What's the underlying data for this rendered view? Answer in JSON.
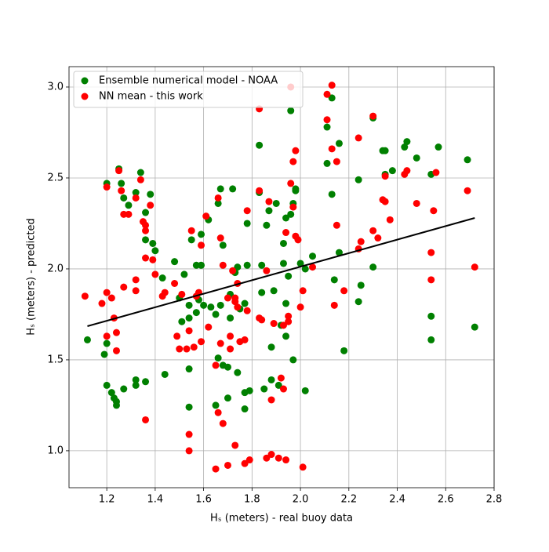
{
  "chart_data": {
    "type": "scatter",
    "xlabel": "Hₛ (meters) - real buoy data",
    "ylabel": "Hₛ (meters) - predicted",
    "xlim": [
      1.044,
      2.8
    ],
    "ylim": [
      0.797,
      3.112
    ],
    "xticks": [
      1.2,
      1.4,
      1.6,
      1.8,
      {
        "value": 2,
        "label": "2.0"
      },
      2.2,
      2.4,
      2.6,
      2.8
    ],
    "yticks": [
      {
        "value": 1,
        "label": "1.0"
      },
      1.5,
      {
        "value": 2,
        "label": "2.0"
      },
      2.5,
      {
        "value": 3,
        "label": "3.0"
      }
    ],
    "grid": true,
    "legend": "upper left",
    "series": [
      {
        "name": "Ensemble numerical model - NOAA",
        "color": "#008000",
        "x": [
          1.12,
          1.19,
          1.2,
          1.2,
          1.2,
          1.22,
          1.23,
          1.24,
          1.24,
          1.25,
          1.26,
          1.27,
          1.27,
          1.29,
          1.32,
          1.32,
          1.32,
          1.34,
          1.36,
          1.36,
          1.36,
          1.38,
          1.39,
          1.4,
          1.43,
          1.44,
          1.48,
          1.5,
          1.51,
          1.52,
          1.54,
          1.54,
          1.54,
          1.54,
          1.55,
          1.57,
          1.57,
          1.58,
          1.59,
          1.59,
          1.6,
          1.62,
          1.63,
          1.65,
          1.65,
          1.66,
          1.66,
          1.67,
          1.67,
          1.68,
          1.68,
          1.7,
          1.7,
          1.71,
          1.71,
          1.72,
          1.73,
          1.74,
          1.74,
          1.75,
          1.77,
          1.77,
          1.77,
          1.78,
          1.78,
          1.79,
          1.83,
          1.83,
          1.84,
          1.84,
          1.85,
          1.86,
          1.87,
          1.88,
          1.88,
          1.89,
          1.9,
          1.91,
          1.92,
          1.93,
          1.93,
          1.94,
          1.94,
          1.94,
          1.95,
          1.96,
          1.96,
          1.97,
          1.97,
          1.98,
          1.98,
          2.0,
          2.02,
          2.02,
          2.05,
          2.11,
          2.11,
          2.13,
          2.13,
          2.14,
          2.16,
          2.16,
          2.18,
          2.24,
          2.24,
          2.25,
          2.3,
          2.3,
          2.34,
          2.35,
          2.35,
          2.38,
          2.43,
          2.44,
          2.48,
          2.54,
          2.54,
          2.54,
          2.57,
          2.69,
          2.72
        ],
        "values": [
          1.61,
          1.53,
          2.47,
          1.59,
          1.36,
          1.32,
          1.29,
          1.27,
          1.25,
          2.55,
          2.47,
          2.39,
          1.34,
          2.35,
          2.42,
          1.39,
          1.36,
          2.53,
          2.31,
          2.16,
          1.38,
          2.41,
          2.14,
          2.1,
          1.95,
          1.42,
          2.04,
          1.84,
          1.71,
          1.97,
          1.8,
          1.73,
          1.45,
          1.24,
          2.16,
          2.02,
          1.76,
          1.83,
          2.19,
          2.02,
          1.8,
          2.27,
          1.79,
          1.75,
          1.25,
          2.36,
          1.51,
          2.44,
          1.8,
          1.47,
          2.13,
          1.46,
          1.29,
          1.86,
          1.73,
          2.44,
          1.98,
          2.01,
          1.43,
          1.78,
          1.81,
          1.32,
          1.23,
          2.25,
          2.02,
          1.33,
          2.68,
          2.42,
          1.87,
          2.02,
          1.34,
          2.24,
          2.32,
          1.57,
          1.39,
          1.88,
          2.36,
          1.36,
          1.69,
          2.14,
          2.03,
          2.28,
          1.81,
          1.63,
          1.96,
          2.87,
          2.3,
          2.36,
          1.5,
          2.44,
          2.43,
          2.03,
          2.0,
          1.33,
          2.07,
          2.78,
          2.58,
          2.94,
          2.41,
          1.94,
          2.69,
          2.09,
          1.55,
          2.49,
          1.82,
          1.91,
          2.83,
          2.01,
          2.65,
          2.65,
          2.52,
          2.54,
          2.67,
          2.7,
          2.61,
          2.52,
          1.74,
          1.61,
          2.67,
          2.6,
          1.68
        ]
      },
      {
        "name": "NN mean - this work",
        "color": "#ff0000",
        "x": [
          1.11,
          1.18,
          1.2,
          1.2,
          1.2,
          1.22,
          1.23,
          1.24,
          1.24,
          1.25,
          1.26,
          1.27,
          1.27,
          1.29,
          1.32,
          1.32,
          1.32,
          1.34,
          1.35,
          1.36,
          1.36,
          1.36,
          1.36,
          1.38,
          1.39,
          1.4,
          1.43,
          1.44,
          1.48,
          1.49,
          1.5,
          1.51,
          1.53,
          1.54,
          1.54,
          1.54,
          1.55,
          1.56,
          1.57,
          1.58,
          1.59,
          1.59,
          1.61,
          1.62,
          1.65,
          1.65,
          1.66,
          1.66,
          1.67,
          1.67,
          1.68,
          1.68,
          1.7,
          1.7,
          1.71,
          1.71,
          1.72,
          1.73,
          1.73,
          1.73,
          1.74,
          1.74,
          1.75,
          1.77,
          1.77,
          1.78,
          1.78,
          1.79,
          1.83,
          1.83,
          1.83,
          1.84,
          1.86,
          1.86,
          1.87,
          1.88,
          1.88,
          1.89,
          1.91,
          1.92,
          1.93,
          1.93,
          1.94,
          1.94,
          1.95,
          1.95,
          1.96,
          1.96,
          1.97,
          1.97,
          1.98,
          1.98,
          1.99,
          2.0,
          2.01,
          2.01,
          2.05,
          2.11,
          2.11,
          2.13,
          2.13,
          2.14,
          2.15,
          2.15,
          2.18,
          2.24,
          2.24,
          2.25,
          2.3,
          2.3,
          2.32,
          2.34,
          2.35,
          2.35,
          2.37,
          2.43,
          2.44,
          2.48,
          2.54,
          2.54,
          2.55,
          2.56,
          2.69,
          2.72
        ],
        "values": [
          1.85,
          1.81,
          2.45,
          1.87,
          1.63,
          1.84,
          1.73,
          1.65,
          1.55,
          2.54,
          2.43,
          2.3,
          1.9,
          2.3,
          2.39,
          1.94,
          1.88,
          2.49,
          2.26,
          2.24,
          2.21,
          2.06,
          1.17,
          2.35,
          2.05,
          1.97,
          1.85,
          1.87,
          1.92,
          1.63,
          1.56,
          1.86,
          1.56,
          1.66,
          1.09,
          1.0,
          2.21,
          1.57,
          1.85,
          1.87,
          2.13,
          1.6,
          2.29,
          1.68,
          1.47,
          0.9,
          1.21,
          2.39,
          2.17,
          1.59,
          2.02,
          1.15,
          1.84,
          0.92,
          1.63,
          1.56,
          1.99,
          1.84,
          1.82,
          1.03,
          1.92,
          1.79,
          1.6,
          1.61,
          0.93,
          2.32,
          1.77,
          0.95,
          2.88,
          2.43,
          1.73,
          1.72,
          1.99,
          0.96,
          2.37,
          1.28,
          0.98,
          1.7,
          0.96,
          1.4,
          1.69,
          1.34,
          0.95,
          2.2,
          1.74,
          1.71,
          3.0,
          2.47,
          2.59,
          2.34,
          2.65,
          2.18,
          2.16,
          1.79,
          1.88,
          0.91,
          2.01,
          2.96,
          2.82,
          3.01,
          2.66,
          1.8,
          2.59,
          2.24,
          1.88,
          2.72,
          2.11,
          2.15,
          2.84,
          2.21,
          2.17,
          2.38,
          2.51,
          2.37,
          2.27,
          2.52,
          2.54,
          2.36,
          2.09,
          1.94,
          2.32,
          2.53,
          2.43,
          2.01
        ]
      }
    ],
    "trend": {
      "x": [
        1.12,
        2.72
      ],
      "y": [
        1.685,
        2.28
      ],
      "color": "#000000"
    }
  }
}
